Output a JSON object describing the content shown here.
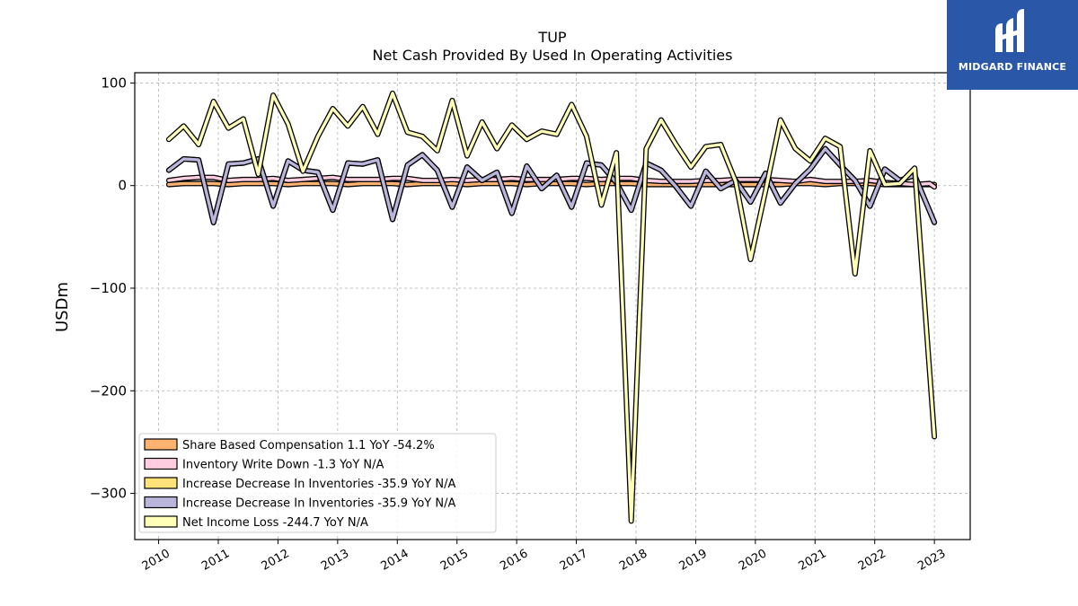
{
  "brand": {
    "name": "MIDGARD FINANCE",
    "bg": "#2a57a8"
  },
  "chart_data": {
    "type": "line",
    "title": "TUP",
    "subtitle": "Net Cash Provided By Used In Operating Activities",
    "ylabel": "USDm",
    "ylim": [
      -345,
      110
    ],
    "xlim": [
      2009.6,
      2023.6
    ],
    "yticks": [
      100,
      0,
      -100,
      -200,
      -300
    ],
    "ytick_labels": [
      "100",
      "0",
      "−100",
      "−200",
      "−300"
    ],
    "xticks": [
      2010,
      2011,
      2012,
      2013,
      2014,
      2015,
      2016,
      2017,
      2018,
      2019,
      2020,
      2021,
      2022,
      2023
    ],
    "xtick_labels": [
      "2010",
      "2011",
      "2012",
      "2013",
      "2014",
      "2015",
      "2016",
      "2017",
      "2018",
      "2019",
      "2020",
      "2021",
      "2022",
      "2023"
    ],
    "grid": true,
    "legend_position": "lower-left",
    "series": [
      {
        "name": "Share Based Compensation  1.1 YoY -54.2%",
        "color": "#ffb370",
        "points": [
          [
            2010.17,
            1
          ],
          [
            2010.42,
            2
          ],
          [
            2010.67,
            2
          ],
          [
            2010.92,
            2
          ],
          [
            2011.17,
            1
          ],
          [
            2011.42,
            2
          ],
          [
            2011.67,
            2
          ],
          [
            2011.92,
            2
          ],
          [
            2012.17,
            1
          ],
          [
            2012.42,
            2
          ],
          [
            2012.67,
            2
          ],
          [
            2012.92,
            2
          ],
          [
            2013.17,
            1
          ],
          [
            2013.42,
            2
          ],
          [
            2013.67,
            2
          ],
          [
            2013.92,
            2
          ],
          [
            2014.17,
            1
          ],
          [
            2014.42,
            2
          ],
          [
            2014.67,
            2
          ],
          [
            2014.92,
            2
          ],
          [
            2015.17,
            1
          ],
          [
            2015.42,
            2
          ],
          [
            2015.67,
            2
          ],
          [
            2015.92,
            2
          ],
          [
            2016.17,
            1
          ],
          [
            2016.42,
            2
          ],
          [
            2016.67,
            2
          ],
          [
            2016.92,
            2
          ],
          [
            2017.17,
            1
          ],
          [
            2017.42,
            2
          ],
          [
            2017.67,
            2
          ],
          [
            2017.92,
            2
          ],
          [
            2018.17,
            1
          ],
          [
            2018.42,
            1
          ],
          [
            2018.67,
            1
          ],
          [
            2018.92,
            1
          ],
          [
            2019.17,
            1
          ],
          [
            2019.42,
            1
          ],
          [
            2019.67,
            1
          ],
          [
            2019.92,
            1
          ],
          [
            2020.17,
            1
          ],
          [
            2020.42,
            1
          ],
          [
            2020.67,
            2
          ],
          [
            2020.92,
            2
          ],
          [
            2021.17,
            1
          ],
          [
            2021.42,
            2
          ],
          [
            2021.67,
            2
          ],
          [
            2021.92,
            2
          ],
          [
            2022.17,
            1
          ],
          [
            2022.42,
            1
          ],
          [
            2022.67,
            1
          ],
          [
            2022.92,
            1
          ],
          [
            2023.0,
            1.1
          ]
        ]
      },
      {
        "name": "Inventory Write Down  -1.3 YoY N/A",
        "color": "#ffcce0",
        "points": [
          [
            2010.17,
            5
          ],
          [
            2010.42,
            7
          ],
          [
            2010.67,
            8
          ],
          [
            2010.92,
            8
          ],
          [
            2011.17,
            5
          ],
          [
            2011.42,
            6
          ],
          [
            2011.67,
            6
          ],
          [
            2011.92,
            7
          ],
          [
            2012.17,
            5
          ],
          [
            2012.42,
            6
          ],
          [
            2012.67,
            7
          ],
          [
            2012.92,
            8
          ],
          [
            2013.17,
            6
          ],
          [
            2013.42,
            6
          ],
          [
            2013.67,
            6
          ],
          [
            2013.92,
            7
          ],
          [
            2014.17,
            7
          ],
          [
            2014.42,
            5
          ],
          [
            2014.67,
            5
          ],
          [
            2014.92,
            6
          ],
          [
            2015.17,
            5
          ],
          [
            2015.42,
            6
          ],
          [
            2015.67,
            6
          ],
          [
            2015.92,
            7
          ],
          [
            2016.17,
            6
          ],
          [
            2016.42,
            6
          ],
          [
            2016.67,
            6
          ],
          [
            2016.92,
            7
          ],
          [
            2017.17,
            7
          ],
          [
            2017.42,
            6
          ],
          [
            2017.67,
            7
          ],
          [
            2017.92,
            7
          ],
          [
            2018.17,
            5
          ],
          [
            2018.42,
            4
          ],
          [
            2018.67,
            4
          ],
          [
            2018.92,
            4
          ],
          [
            2019.17,
            5
          ],
          [
            2019.42,
            5
          ],
          [
            2019.67,
            6
          ],
          [
            2019.92,
            6
          ],
          [
            2020.17,
            6
          ],
          [
            2020.42,
            5
          ],
          [
            2020.67,
            4
          ],
          [
            2020.92,
            6
          ],
          [
            2021.17,
            4
          ],
          [
            2021.42,
            4
          ],
          [
            2021.67,
            4
          ],
          [
            2021.92,
            5
          ],
          [
            2022.17,
            3
          ],
          [
            2022.42,
            2
          ],
          [
            2022.67,
            1
          ],
          [
            2022.92,
            2
          ],
          [
            2023.0,
            -1.3
          ]
        ]
      },
      {
        "name": "Increase Decrease In Inventories  -35.9 YoY N/A",
        "color": "#ffe27a",
        "points": [
          [
            2010.17,
            15
          ],
          [
            2010.42,
            26
          ],
          [
            2010.67,
            25
          ],
          [
            2010.92,
            -36
          ],
          [
            2011.17,
            21
          ],
          [
            2011.42,
            22
          ],
          [
            2011.67,
            26
          ],
          [
            2011.92,
            -20
          ],
          [
            2012.17,
            24
          ],
          [
            2012.42,
            15
          ],
          [
            2012.67,
            13
          ],
          [
            2012.92,
            -24
          ],
          [
            2013.17,
            22
          ],
          [
            2013.42,
            21
          ],
          [
            2013.67,
            25
          ],
          [
            2013.92,
            -33
          ],
          [
            2014.17,
            20
          ],
          [
            2014.42,
            30
          ],
          [
            2014.67,
            15
          ],
          [
            2014.92,
            -21
          ],
          [
            2015.17,
            18
          ],
          [
            2015.42,
            5
          ],
          [
            2015.67,
            13
          ],
          [
            2015.92,
            -27
          ],
          [
            2016.17,
            19
          ],
          [
            2016.42,
            -3
          ],
          [
            2016.67,
            10
          ],
          [
            2016.92,
            -21
          ],
          [
            2017.17,
            22
          ],
          [
            2017.42,
            20
          ],
          [
            2017.67,
            3
          ],
          [
            2017.92,
            -24
          ],
          [
            2018.17,
            22
          ],
          [
            2018.42,
            15
          ],
          [
            2018.67,
            -1
          ],
          [
            2018.92,
            -20
          ],
          [
            2019.17,
            14
          ],
          [
            2019.42,
            -3
          ],
          [
            2019.67,
            5
          ],
          [
            2019.92,
            -16
          ],
          [
            2020.17,
            12
          ],
          [
            2020.42,
            -17
          ],
          [
            2020.67,
            2
          ],
          [
            2020.92,
            16
          ],
          [
            2021.17,
            36
          ],
          [
            2021.42,
            20
          ],
          [
            2021.67,
            5
          ],
          [
            2021.92,
            -20
          ],
          [
            2022.17,
            16
          ],
          [
            2022.42,
            5
          ],
          [
            2022.67,
            10
          ],
          [
            2023.0,
            -35.9
          ]
        ]
      },
      {
        "name": "Increase Decrease In Inventories  -35.9 YoY N/A",
        "color": "#b9b5db",
        "points": [
          [
            2010.17,
            15
          ],
          [
            2010.42,
            26
          ],
          [
            2010.67,
            25
          ],
          [
            2010.92,
            -36
          ],
          [
            2011.17,
            21
          ],
          [
            2011.42,
            22
          ],
          [
            2011.67,
            26
          ],
          [
            2011.92,
            -20
          ],
          [
            2012.17,
            24
          ],
          [
            2012.42,
            15
          ],
          [
            2012.67,
            13
          ],
          [
            2012.92,
            -24
          ],
          [
            2013.17,
            22
          ],
          [
            2013.42,
            21
          ],
          [
            2013.67,
            25
          ],
          [
            2013.92,
            -33
          ],
          [
            2014.17,
            20
          ],
          [
            2014.42,
            30
          ],
          [
            2014.67,
            15
          ],
          [
            2014.92,
            -21
          ],
          [
            2015.17,
            18
          ],
          [
            2015.42,
            5
          ],
          [
            2015.67,
            13
          ],
          [
            2015.92,
            -27
          ],
          [
            2016.17,
            19
          ],
          [
            2016.42,
            -3
          ],
          [
            2016.67,
            10
          ],
          [
            2016.92,
            -21
          ],
          [
            2017.17,
            22
          ],
          [
            2017.42,
            20
          ],
          [
            2017.67,
            3
          ],
          [
            2017.92,
            -24
          ],
          [
            2018.17,
            22
          ],
          [
            2018.42,
            15
          ],
          [
            2018.67,
            -1
          ],
          [
            2018.92,
            -20
          ],
          [
            2019.17,
            14
          ],
          [
            2019.42,
            -3
          ],
          [
            2019.67,
            5
          ],
          [
            2019.92,
            -16
          ],
          [
            2020.17,
            12
          ],
          [
            2020.42,
            -17
          ],
          [
            2020.67,
            2
          ],
          [
            2020.92,
            16
          ],
          [
            2021.17,
            36
          ],
          [
            2021.42,
            20
          ],
          [
            2021.67,
            5
          ],
          [
            2021.92,
            -20
          ],
          [
            2022.17,
            16
          ],
          [
            2022.42,
            5
          ],
          [
            2022.67,
            10
          ],
          [
            2023.0,
            -35.9
          ]
        ]
      },
      {
        "name": "Net Income Loss  -244.7 YoY N/A",
        "color": "#ffffb8",
        "points": [
          [
            2010.17,
            45
          ],
          [
            2010.42,
            58
          ],
          [
            2010.67,
            40
          ],
          [
            2010.92,
            82
          ],
          [
            2011.17,
            56
          ],
          [
            2011.42,
            65
          ],
          [
            2011.67,
            11
          ],
          [
            2011.92,
            88
          ],
          [
            2012.17,
            60
          ],
          [
            2012.42,
            14
          ],
          [
            2012.67,
            48
          ],
          [
            2012.92,
            75
          ],
          [
            2013.17,
            58
          ],
          [
            2013.42,
            77
          ],
          [
            2013.67,
            50
          ],
          [
            2013.92,
            90
          ],
          [
            2014.17,
            52
          ],
          [
            2014.42,
            48
          ],
          [
            2014.67,
            34
          ],
          [
            2014.92,
            83
          ],
          [
            2015.17,
            29
          ],
          [
            2015.42,
            62
          ],
          [
            2015.67,
            36
          ],
          [
            2015.92,
            59
          ],
          [
            2016.17,
            45
          ],
          [
            2016.42,
            53
          ],
          [
            2016.67,
            50
          ],
          [
            2016.92,
            79
          ],
          [
            2017.17,
            48
          ],
          [
            2017.42,
            -19
          ],
          [
            2017.67,
            32
          ],
          [
            2017.92,
            -327
          ],
          [
            2018.17,
            36
          ],
          [
            2018.42,
            64
          ],
          [
            2018.67,
            40
          ],
          [
            2018.92,
            18
          ],
          [
            2019.17,
            38
          ],
          [
            2019.42,
            40
          ],
          [
            2019.67,
            4
          ],
          [
            2019.92,
            -72
          ],
          [
            2020.17,
            -5
          ],
          [
            2020.42,
            64
          ],
          [
            2020.67,
            36
          ],
          [
            2020.92,
            24
          ],
          [
            2021.17,
            46
          ],
          [
            2021.42,
            38
          ],
          [
            2021.67,
            -86
          ],
          [
            2021.92,
            34
          ],
          [
            2022.17,
            1
          ],
          [
            2022.42,
            2
          ],
          [
            2022.67,
            17
          ],
          [
            2023.0,
            -244.7
          ]
        ]
      }
    ]
  }
}
